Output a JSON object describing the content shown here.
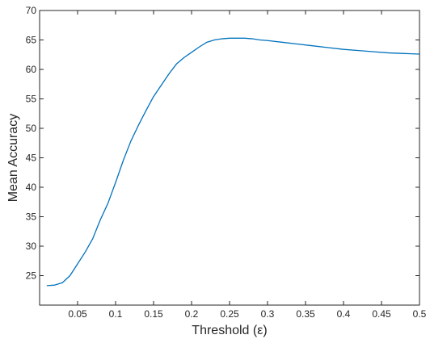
{
  "chart_data": {
    "type": "line",
    "title": "",
    "xlabel": "Threshold (ε)",
    "ylabel": "Mean Accuracy",
    "xlim": [
      0,
      0.5
    ],
    "ylim": [
      20,
      70
    ],
    "xticks": [
      0.05,
      0.1,
      0.15,
      0.2,
      0.25,
      0.3,
      0.35,
      0.4,
      0.45,
      0.5
    ],
    "xtick_labels": [
      "0.05",
      "0.1",
      "0.15",
      "0.2",
      "0.25",
      "0.3",
      "0.35",
      "0.4",
      "0.45",
      "0.5"
    ],
    "yticks": [
      25,
      30,
      35,
      40,
      45,
      50,
      55,
      60,
      65,
      70
    ],
    "ytick_labels": [
      "25",
      "30",
      "35",
      "40",
      "45",
      "50",
      "55",
      "60",
      "65",
      "70"
    ],
    "grid": false,
    "series": [
      {
        "color": "#0072BD",
        "x": [
          0.01,
          0.02,
          0.03,
          0.04,
          0.05,
          0.06,
          0.07,
          0.08,
          0.09,
          0.1,
          0.11,
          0.12,
          0.13,
          0.14,
          0.15,
          0.16,
          0.17,
          0.18,
          0.19,
          0.2,
          0.21,
          0.22,
          0.23,
          0.24,
          0.25,
          0.26,
          0.27,
          0.28,
          0.29,
          0.3,
          0.32,
          0.34,
          0.36,
          0.38,
          0.4,
          0.42,
          0.44,
          0.46,
          0.48,
          0.5
        ],
        "y": [
          23.3,
          23.4,
          23.8,
          25.0,
          27.0,
          29.0,
          31.3,
          34.5,
          37.3,
          40.8,
          44.5,
          47.8,
          50.5,
          53.0,
          55.4,
          57.3,
          59.2,
          60.9,
          62.0,
          62.9,
          63.8,
          64.6,
          65.0,
          65.2,
          65.3,
          65.3,
          65.3,
          65.2,
          65.0,
          64.9,
          64.6,
          64.3,
          64.0,
          63.7,
          63.4,
          63.2,
          63.0,
          62.8,
          62.7,
          62.6
        ]
      }
    ]
  }
}
